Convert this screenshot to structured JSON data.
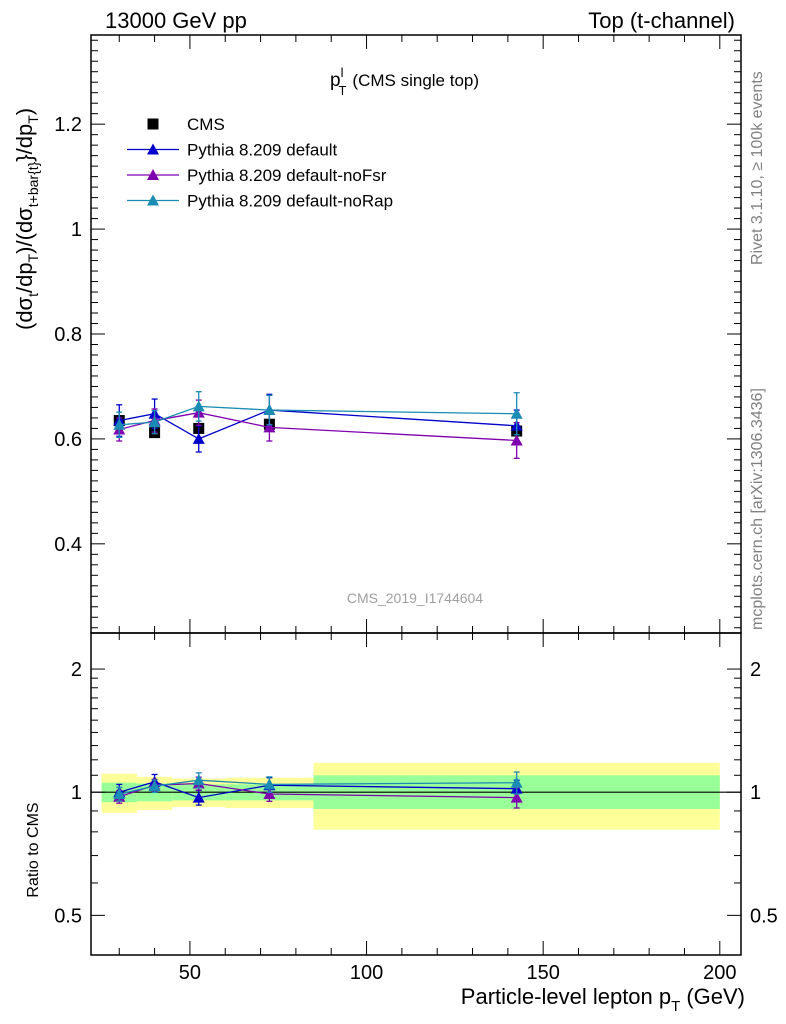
{
  "header": {
    "left": "13000 GeV pp",
    "right": "Top (t-channel)"
  },
  "side_labels": {
    "rivet": "Rivet 3.1.10, ≥ 100k events",
    "mcplots": "mcplots.cern.ch [arXiv:1306.3436]"
  },
  "plot_title": {
    "main": "p",
    "sup": "l",
    "sub": "T",
    "suffix": "(CMS single top)"
  },
  "watermark": "CMS_2019_I1744604",
  "y_label_top": {
    "p1": "(dσ",
    "s1": "t",
    "p2": "/dp",
    "s2": "T",
    "p3": ")/(dσ",
    "s3": "t+bar{t}",
    "p4": "}/dp",
    "s4": "T",
    "p5": ")"
  },
  "y_label_bottom": "Ratio to CMS",
  "x_label": {
    "main": "Particle-level lepton p",
    "sub": "T",
    "unit": "(GeV)"
  },
  "chart_data": [
    {
      "type": "line",
      "panel": "main",
      "x_range": [
        22,
        206
      ],
      "ylim": [
        0.23,
        1.37
      ],
      "x_ticks": [
        50,
        100,
        150,
        200
      ],
      "y_ticks": [
        0.4,
        0.6,
        0.8,
        1.0,
        1.2
      ],
      "y_tick_labels": [
        "0.4",
        "0.6",
        "0.8",
        "1",
        "1.2"
      ],
      "legend_position": "top-left",
      "data": {
        "name": "CMS",
        "color": "#000000",
        "x": [
          30,
          40,
          52.5,
          72.5,
          142.5
        ],
        "y": [
          0.635,
          0.612,
          0.62,
          0.628,
          0.615
        ]
      },
      "series": [
        {
          "name": "Pythia 8.209 default",
          "color": "#0000cc",
          "x": [
            30,
            40,
            52.5,
            72.5,
            142.5
          ],
          "y": [
            0.635,
            0.648,
            0.6,
            0.655,
            0.625
          ],
          "err": [
            0.03,
            0.028,
            0.025,
            0.03,
            0.03
          ]
        },
        {
          "name": "Pythia 8.209 default-noFsr",
          "color": "#8000b0",
          "x": [
            30,
            40,
            52.5,
            72.5,
            142.5
          ],
          "y": [
            0.618,
            0.635,
            0.65,
            0.622,
            0.597
          ],
          "err": [
            0.022,
            0.022,
            0.024,
            0.026,
            0.034
          ]
        },
        {
          "name": "Pythia 8.209 default-noRap",
          "color": "#1a8cb3",
          "x": [
            30,
            40,
            52.5,
            72.5,
            142.5
          ],
          "y": [
            0.627,
            0.632,
            0.662,
            0.655,
            0.648
          ],
          "err": [
            0.024,
            0.022,
            0.028,
            0.028,
            0.04
          ]
        }
      ]
    },
    {
      "type": "line",
      "panel": "ratio",
      "y_scale": "log",
      "ylim": [
        0.4,
        2.45
      ],
      "y_ticks": [
        0.5,
        1,
        2
      ],
      "y_tick_labels": [
        "0.5",
        "1",
        "2"
      ],
      "x_tick_labels": [
        "50",
        "100",
        "150",
        "200"
      ],
      "bands": [
        {
          "x_low": 25,
          "x_high": 35,
          "inner": [
            0.945,
            1.055
          ],
          "outer": [
            0.89,
            1.11
          ]
        },
        {
          "x_low": 35,
          "x_high": 45,
          "inner": [
            0.95,
            1.05
          ],
          "outer": [
            0.905,
            1.09
          ]
        },
        {
          "x_low": 45,
          "x_high": 60,
          "inner": [
            0.955,
            1.045
          ],
          "outer": [
            0.92,
            1.08
          ]
        },
        {
          "x_low": 60,
          "x_high": 85,
          "inner": [
            0.955,
            1.045
          ],
          "outer": [
            0.915,
            1.085
          ]
        },
        {
          "x_low": 85,
          "x_high": 200,
          "inner": [
            0.91,
            1.1
          ],
          "outer": [
            0.81,
            1.18
          ]
        }
      ],
      "series": [
        {
          "name": "Pythia 8.209 default",
          "color": "#0000cc",
          "x": [
            30,
            40,
            52.5,
            72.5,
            142.5
          ],
          "y": [
            1.0,
            1.06,
            0.97,
            1.04,
            1.02
          ],
          "err": [
            0.045,
            0.045,
            0.04,
            0.045,
            0.05
          ]
        },
        {
          "name": "Pythia 8.209 default-noFsr",
          "color": "#8000b0",
          "x": [
            30,
            40,
            52.5,
            72.5,
            142.5
          ],
          "y": [
            0.975,
            1.04,
            1.05,
            0.99,
            0.97
          ],
          "err": [
            0.035,
            0.035,
            0.038,
            0.04,
            0.055
          ]
        },
        {
          "name": "Pythia 8.209 default-noRap",
          "color": "#1a8cb3",
          "x": [
            30,
            40,
            52.5,
            72.5,
            142.5
          ],
          "y": [
            0.99,
            1.035,
            1.07,
            1.045,
            1.055
          ],
          "err": [
            0.038,
            0.036,
            0.045,
            0.045,
            0.065
          ]
        }
      ]
    }
  ]
}
